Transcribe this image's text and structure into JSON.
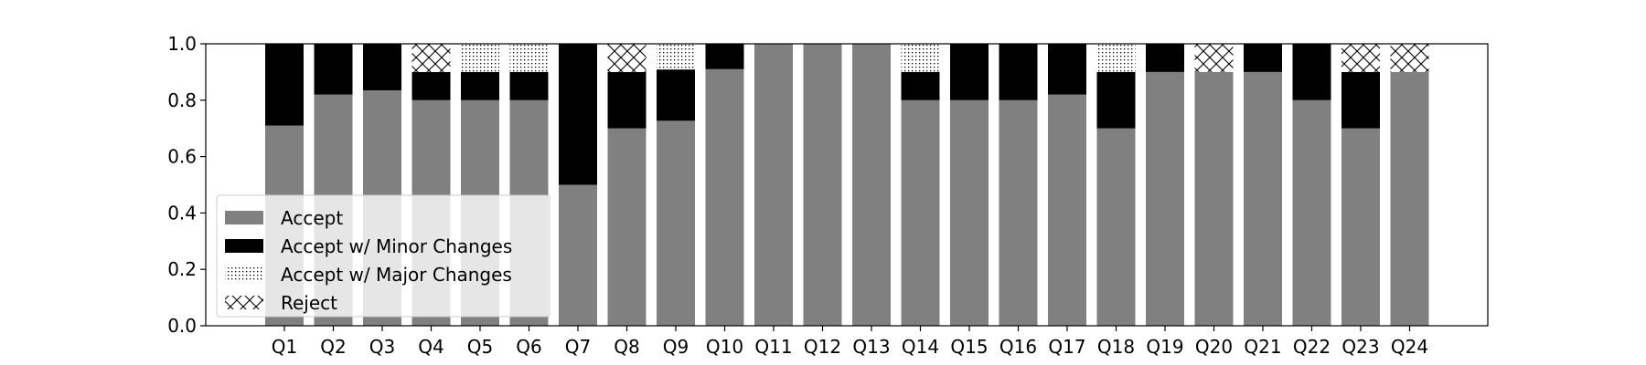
{
  "chart_data": {
    "type": "bar",
    "stacked": true,
    "title": "",
    "xlabel": "",
    "ylabel": "",
    "ylim": [
      0,
      1.0
    ],
    "yticks": [
      "0.0",
      "0.2",
      "0.4",
      "0.6",
      "0.8",
      "1.0"
    ],
    "categories": [
      "Q1",
      "Q2",
      "Q3",
      "Q4",
      "Q5",
      "Q6",
      "Q7",
      "Q8",
      "Q9",
      "Q10",
      "Q11",
      "Q12",
      "Q13",
      "Q14",
      "Q15",
      "Q16",
      "Q17",
      "Q18",
      "Q19",
      "Q20",
      "Q21",
      "Q22",
      "Q23",
      "Q24"
    ],
    "series": [
      {
        "name": "Accept",
        "color": "#808080",
        "pattern": "solid-gray",
        "values": [
          0.71,
          0.82,
          0.835,
          0.8,
          0.8,
          0.8,
          0.5,
          0.7,
          0.727,
          0.91,
          1.0,
          1.0,
          1.0,
          0.8,
          0.8,
          0.8,
          0.82,
          0.7,
          0.9,
          0.9,
          0.9,
          0.8,
          0.7,
          0.9
        ]
      },
      {
        "name": "Accept w/ Minor Changes",
        "color": "#000000",
        "pattern": "solid-black",
        "values": [
          0.29,
          0.18,
          0.165,
          0.1,
          0.1,
          0.1,
          0.5,
          0.2,
          0.182,
          0.09,
          0.0,
          0.0,
          0.0,
          0.1,
          0.2,
          0.2,
          0.18,
          0.2,
          0.1,
          0.0,
          0.1,
          0.2,
          0.2,
          0.0
        ]
      },
      {
        "name": "Accept w/ Major Changes",
        "color": "#ffffff",
        "pattern": "dots",
        "values": [
          0.0,
          0.0,
          0.0,
          0.0,
          0.1,
          0.1,
          0.0,
          0.0,
          0.091,
          0.0,
          0.0,
          0.0,
          0.0,
          0.1,
          0.0,
          0.0,
          0.0,
          0.1,
          0.0,
          0.0,
          0.0,
          0.0,
          0.0,
          0.0
        ]
      },
      {
        "name": "Reject",
        "color": "#ffffff",
        "pattern": "crosshatch",
        "values": [
          0.0,
          0.0,
          0.0,
          0.1,
          0.0,
          0.0,
          0.0,
          0.1,
          0.0,
          0.0,
          0.0,
          0.0,
          0.0,
          0.0,
          0.0,
          0.0,
          0.0,
          0.0,
          0.0,
          0.1,
          0.0,
          0.0,
          0.1,
          0.1
        ]
      }
    ],
    "grid": false,
    "legend_position": "lower-left"
  }
}
